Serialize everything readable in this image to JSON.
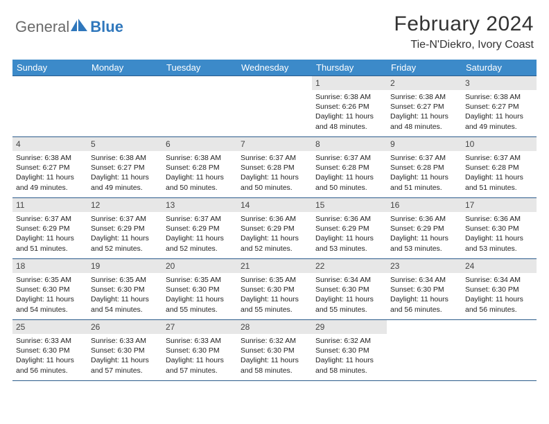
{
  "brand": {
    "word1": "General",
    "word2": "Blue"
  },
  "title": "February 2024",
  "location": "Tie-N'Diekro, Ivory Coast",
  "colors": {
    "header_bg": "#3c8ac9",
    "header_text": "#ffffff",
    "daynum_bg": "#e7e7e7",
    "rule": "#2a5a8a",
    "brand_gray": "#6a6a6a",
    "brand_blue": "#2f77bc",
    "page_bg": "#ffffff",
    "text": "#222222"
  },
  "typography": {
    "title_fontsize": 30,
    "location_fontsize": 16,
    "weekday_fontsize": 13,
    "daynum_fontsize": 12,
    "body_fontsize": 10.5
  },
  "weekdays": [
    "Sunday",
    "Monday",
    "Tuesday",
    "Wednesday",
    "Thursday",
    "Friday",
    "Saturday"
  ],
  "weeks": [
    [
      {
        "day": null
      },
      {
        "day": null
      },
      {
        "day": null
      },
      {
        "day": null
      },
      {
        "day": 1,
        "sunrise": "6:38 AM",
        "sunset": "6:26 PM",
        "daylight": "11 hours and 48 minutes."
      },
      {
        "day": 2,
        "sunrise": "6:38 AM",
        "sunset": "6:27 PM",
        "daylight": "11 hours and 48 minutes."
      },
      {
        "day": 3,
        "sunrise": "6:38 AM",
        "sunset": "6:27 PM",
        "daylight": "11 hours and 49 minutes."
      }
    ],
    [
      {
        "day": 4,
        "sunrise": "6:38 AM",
        "sunset": "6:27 PM",
        "daylight": "11 hours and 49 minutes."
      },
      {
        "day": 5,
        "sunrise": "6:38 AM",
        "sunset": "6:27 PM",
        "daylight": "11 hours and 49 minutes."
      },
      {
        "day": 6,
        "sunrise": "6:38 AM",
        "sunset": "6:28 PM",
        "daylight": "11 hours and 50 minutes."
      },
      {
        "day": 7,
        "sunrise": "6:37 AM",
        "sunset": "6:28 PM",
        "daylight": "11 hours and 50 minutes."
      },
      {
        "day": 8,
        "sunrise": "6:37 AM",
        "sunset": "6:28 PM",
        "daylight": "11 hours and 50 minutes."
      },
      {
        "day": 9,
        "sunrise": "6:37 AM",
        "sunset": "6:28 PM",
        "daylight": "11 hours and 51 minutes."
      },
      {
        "day": 10,
        "sunrise": "6:37 AM",
        "sunset": "6:28 PM",
        "daylight": "11 hours and 51 minutes."
      }
    ],
    [
      {
        "day": 11,
        "sunrise": "6:37 AM",
        "sunset": "6:29 PM",
        "daylight": "11 hours and 51 minutes."
      },
      {
        "day": 12,
        "sunrise": "6:37 AM",
        "sunset": "6:29 PM",
        "daylight": "11 hours and 52 minutes."
      },
      {
        "day": 13,
        "sunrise": "6:37 AM",
        "sunset": "6:29 PM",
        "daylight": "11 hours and 52 minutes."
      },
      {
        "day": 14,
        "sunrise": "6:36 AM",
        "sunset": "6:29 PM",
        "daylight": "11 hours and 52 minutes."
      },
      {
        "day": 15,
        "sunrise": "6:36 AM",
        "sunset": "6:29 PM",
        "daylight": "11 hours and 53 minutes."
      },
      {
        "day": 16,
        "sunrise": "6:36 AM",
        "sunset": "6:29 PM",
        "daylight": "11 hours and 53 minutes."
      },
      {
        "day": 17,
        "sunrise": "6:36 AM",
        "sunset": "6:30 PM",
        "daylight": "11 hours and 53 minutes."
      }
    ],
    [
      {
        "day": 18,
        "sunrise": "6:35 AM",
        "sunset": "6:30 PM",
        "daylight": "11 hours and 54 minutes."
      },
      {
        "day": 19,
        "sunrise": "6:35 AM",
        "sunset": "6:30 PM",
        "daylight": "11 hours and 54 minutes."
      },
      {
        "day": 20,
        "sunrise": "6:35 AM",
        "sunset": "6:30 PM",
        "daylight": "11 hours and 55 minutes."
      },
      {
        "day": 21,
        "sunrise": "6:35 AM",
        "sunset": "6:30 PM",
        "daylight": "11 hours and 55 minutes."
      },
      {
        "day": 22,
        "sunrise": "6:34 AM",
        "sunset": "6:30 PM",
        "daylight": "11 hours and 55 minutes."
      },
      {
        "day": 23,
        "sunrise": "6:34 AM",
        "sunset": "6:30 PM",
        "daylight": "11 hours and 56 minutes."
      },
      {
        "day": 24,
        "sunrise": "6:34 AM",
        "sunset": "6:30 PM",
        "daylight": "11 hours and 56 minutes."
      }
    ],
    [
      {
        "day": 25,
        "sunrise": "6:33 AM",
        "sunset": "6:30 PM",
        "daylight": "11 hours and 56 minutes."
      },
      {
        "day": 26,
        "sunrise": "6:33 AM",
        "sunset": "6:30 PM",
        "daylight": "11 hours and 57 minutes."
      },
      {
        "day": 27,
        "sunrise": "6:33 AM",
        "sunset": "6:30 PM",
        "daylight": "11 hours and 57 minutes."
      },
      {
        "day": 28,
        "sunrise": "6:32 AM",
        "sunset": "6:30 PM",
        "daylight": "11 hours and 58 minutes."
      },
      {
        "day": 29,
        "sunrise": "6:32 AM",
        "sunset": "6:30 PM",
        "daylight": "11 hours and 58 minutes."
      },
      {
        "day": null
      },
      {
        "day": null
      }
    ]
  ]
}
